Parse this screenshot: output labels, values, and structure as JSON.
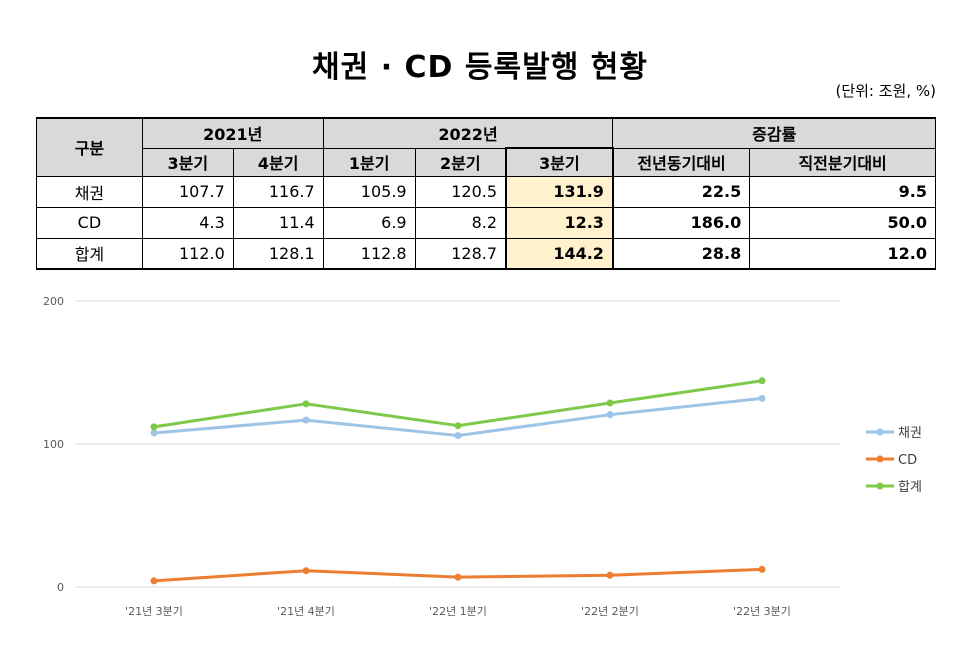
{
  "title": "채권 · CD 등록발행 현황",
  "unit": "(단위: 조원, %)",
  "table": {
    "header_label": "구분",
    "year_2021": "2021년",
    "year_2022": "2022년",
    "growth": "증감률",
    "sub": [
      "3분기",
      "4분기",
      "1분기",
      "2분기",
      "3분기",
      "전년동기대비",
      "직전분기대비"
    ],
    "rows": [
      {
        "label": "채권",
        "values": [
          "107.7",
          "116.7",
          "105.9",
          "120.5",
          "131.9",
          "22.5",
          "9.5"
        ]
      },
      {
        "label": "CD",
        "values": [
          "4.3",
          "11.4",
          "6.9",
          "8.2",
          "12.3",
          "186.0",
          "50.0"
        ]
      },
      {
        "label": "합계",
        "values": [
          "112.0",
          "128.1",
          "112.8",
          "128.7",
          "144.2",
          "28.8",
          "12.0"
        ]
      }
    ]
  },
  "chart_data": {
    "type": "line",
    "categories": [
      "'21년 3분기",
      "'21년 4분기",
      "'22년 1분기",
      "'22년 2분기",
      "'22년 3분기"
    ],
    "series": [
      {
        "name": "채권",
        "color": "#9dc3e6",
        "values": [
          107.7,
          116.7,
          105.9,
          120.5,
          131.9
        ]
      },
      {
        "name": "CD",
        "color": "#ed7d31",
        "values": [
          4.3,
          11.4,
          6.9,
          8.2,
          12.3
        ]
      },
      {
        "name": "합계",
        "color": "#7ec94a",
        "values": [
          112.0,
          128.1,
          112.8,
          128.7,
          144.2
        ]
      }
    ],
    "yticks": [
      "0",
      "100",
      "200"
    ],
    "ylim": [
      0,
      200
    ],
    "grid": true,
    "legend": "right"
  }
}
